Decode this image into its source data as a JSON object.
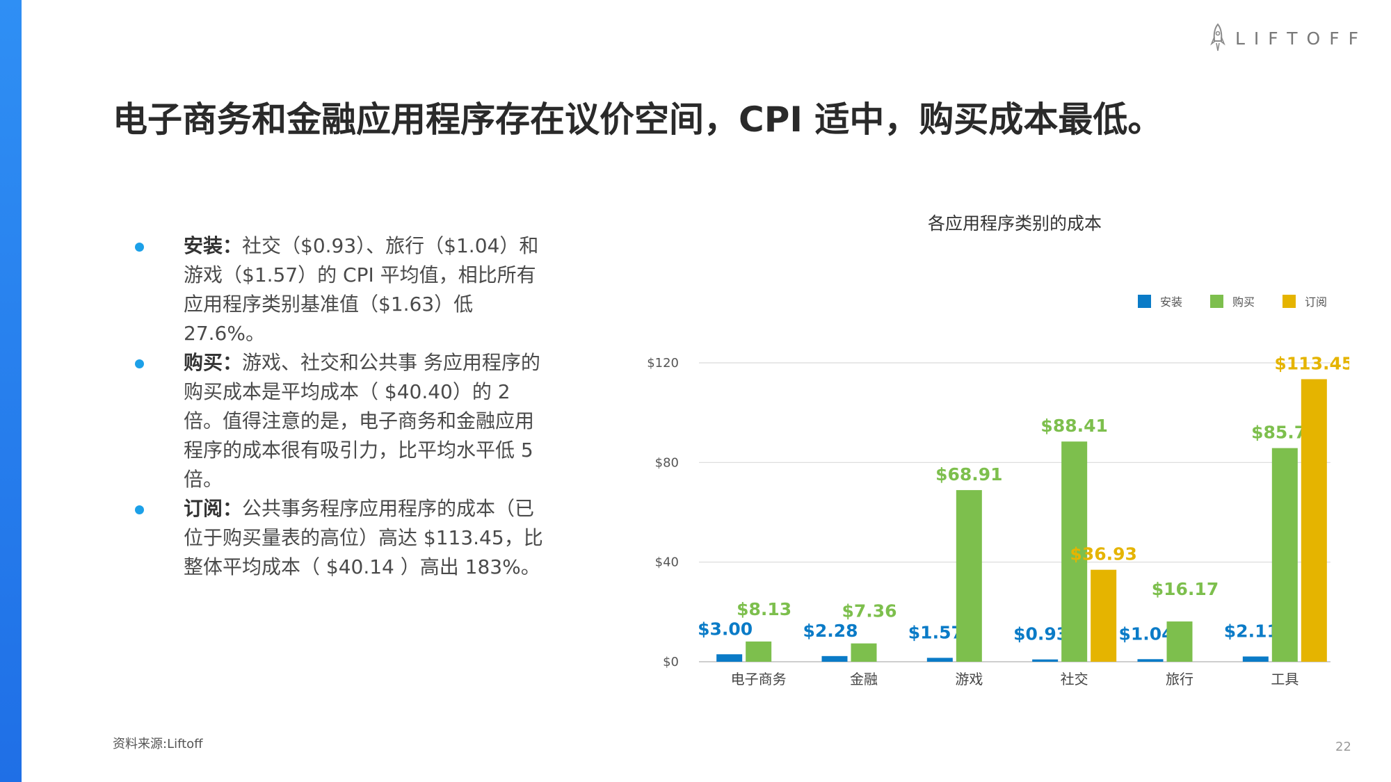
{
  "brand": {
    "name": "LIFTOFF"
  },
  "headline": "电子商务和金融应用程序存在议价空间，CPI 适中，购买成本最低。",
  "bullets": [
    {
      "label": "安装：",
      "text": "社交（$0.93）、旅行（$1.04）和游戏（$1.57）的 CPI 平均值，相比所有应用程序类别基准值（$1.63）低 27.6%。"
    },
    {
      "label": "购买：",
      "text": "游戏、社交和公共事 务应用程序的购买成本是平均成本（ $40.40）的 2 倍。值得注意的是，电子商务和金融应用程序的成本很有吸引力，比平均水平低 5 倍。"
    },
    {
      "label": "订阅：",
      "text": "公共事务程序应用程序的成本（已位于购买量表的高位）高达 $113.45，比整体平均成本（ $40.14 ）高出 183%。"
    }
  ],
  "source": "资料来源:Liftoff",
  "page_number": "22",
  "colors": {
    "install": "#0a7bc7",
    "purchase": "#7dbf4d",
    "subscribe": "#e5b400",
    "accent_bar": "#2f8ff4",
    "bullet": "#1ca0e8"
  },
  "chart_data": {
    "type": "bar",
    "title": "各应用程序类别的成本",
    "categories": [
      "电子商务",
      "金融",
      "游戏",
      "社交",
      "旅行",
      "工具"
    ],
    "series": [
      {
        "name": "安装",
        "values": [
          3.0,
          2.28,
          1.57,
          0.93,
          1.04,
          2.11
        ],
        "labels": [
          "$3.00",
          "$2.28",
          "$1.57",
          "$0.93",
          "$1.04",
          "$2.11"
        ]
      },
      {
        "name": "购买",
        "values": [
          8.13,
          7.36,
          68.91,
          88.41,
          16.17,
          85.78
        ],
        "labels": [
          "$8.13",
          "$7.36",
          "$68.91",
          "$88.41",
          "$16.17",
          "$85.78"
        ]
      },
      {
        "name": "订阅",
        "values": [
          null,
          null,
          null,
          36.93,
          null,
          113.45
        ],
        "labels": [
          null,
          null,
          null,
          "$36.93",
          null,
          "$113.45"
        ]
      }
    ],
    "yticks": [
      "$0",
      "$40",
      "$80",
      "$120"
    ],
    "ylim": [
      0,
      120
    ],
    "grid": true,
    "legend": "top-right"
  }
}
